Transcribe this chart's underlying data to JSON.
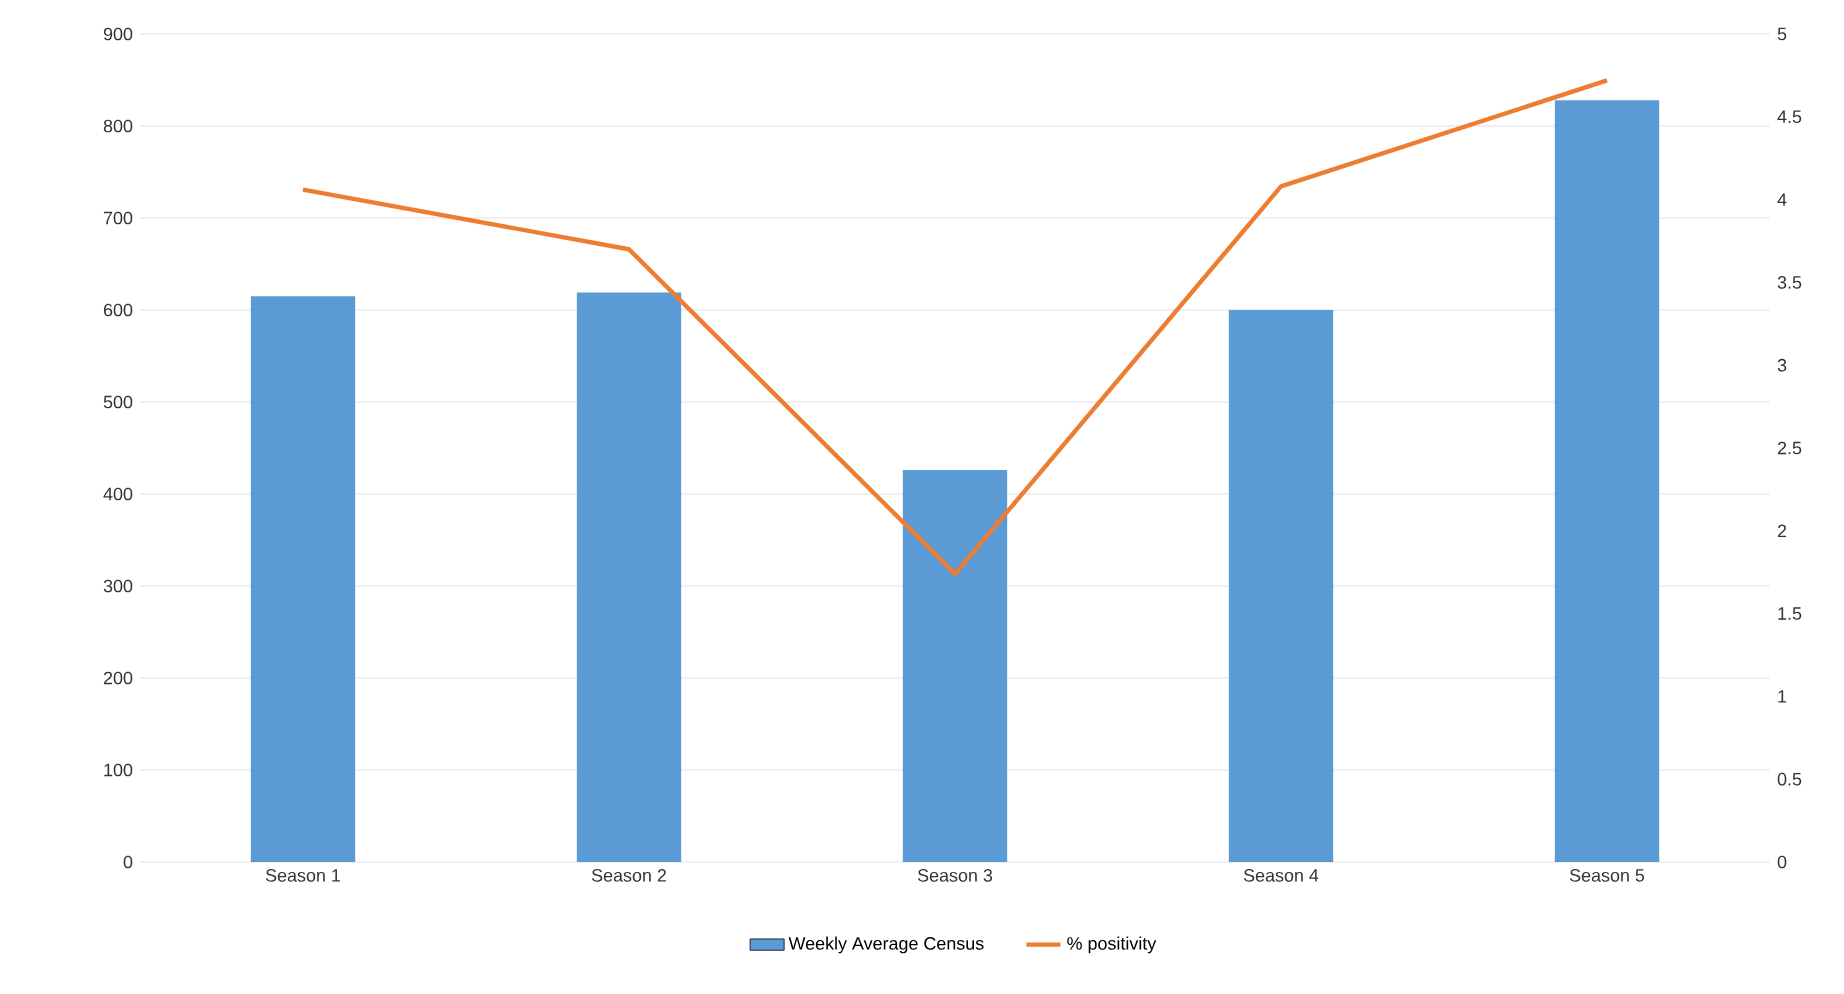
{
  "chart_data": {
    "type": "bar",
    "categories": [
      "Season 1",
      "Season 2",
      "Season 3",
      "Season 4",
      "Season 5"
    ],
    "series": [
      {
        "name": "Weekly Average Census",
        "color": "#5b9bd5",
        "values": [
          615,
          619,
          426,
          600,
          828
        ]
      },
      {
        "name": "% positivity",
        "type": "line",
        "axis": "y2",
        "color": "#ed7d31",
        "values": [
          4.06,
          3.7,
          1.74,
          4.08,
          4.72
        ]
      }
    ],
    "ylim": [
      0,
      900
    ],
    "yticks": [
      0,
      100,
      200,
      300,
      400,
      500,
      600,
      700,
      800,
      900
    ],
    "y2lim": [
      0,
      5
    ],
    "y2ticks": [
      0,
      0.5,
      1,
      1.5,
      2,
      2.5,
      3,
      3.5,
      4,
      4.5,
      5
    ],
    "grid": "y",
    "legend": "bottom",
    "marker": "none"
  }
}
